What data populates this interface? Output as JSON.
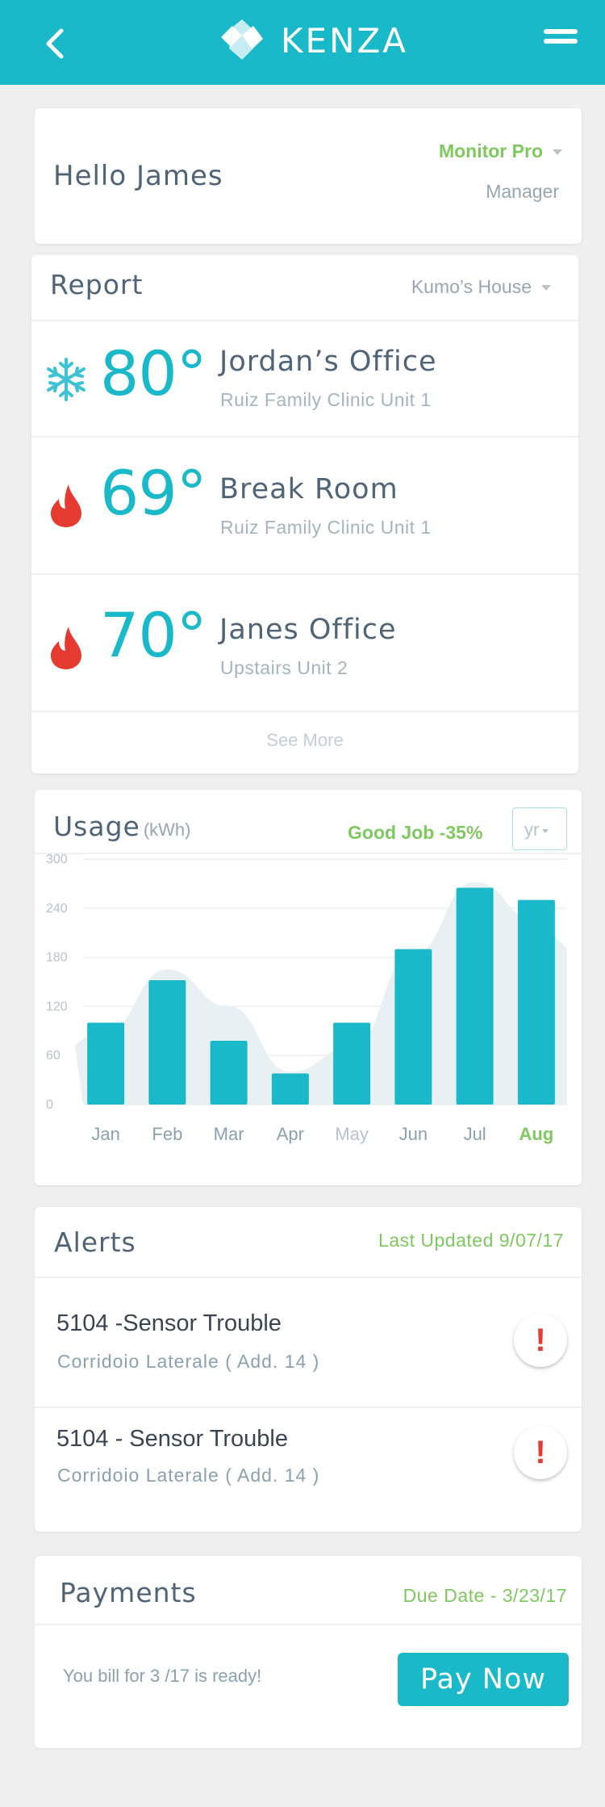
{
  "app": {
    "brand": "KENZA",
    "colors": {
      "primary": "#19b9c9",
      "accent_green": "#7ec85f",
      "alert_red": "#e53a30",
      "text_dark": "#4f6477"
    }
  },
  "header": {
    "back_icon": "chevron-left-icon",
    "menu_icon": "hamburger-menu-icon",
    "logo_icon": "kenza-logo-icon"
  },
  "greeting": {
    "text": "Hello James",
    "plan": "Monitor Pro",
    "role": "Manager"
  },
  "report": {
    "title": "Report",
    "location": "Kumo’s House",
    "zones": [
      {
        "temp": "80°",
        "mode": "cool",
        "icon": "snowflake-icon",
        "name": "Jordan’s Office",
        "unit": "Ruiz Family Clinic Unit 1"
      },
      {
        "temp": "69°",
        "mode": "heat",
        "icon": "flame-drop-icon",
        "name": "Break Room",
        "unit": "Ruiz Family Clinic Unit 1"
      },
      {
        "temp": "70°",
        "mode": "heat",
        "icon": "flame-drop-icon",
        "name": "Janes Office",
        "unit": "Upstairs Unit 2"
      }
    ],
    "see_more": "See More"
  },
  "usage": {
    "title": "Usage",
    "unit": "(kWh)",
    "status": "Good Job -35%",
    "period": "yr"
  },
  "chart_data": {
    "type": "bar",
    "categories": [
      "Jan",
      "Feb",
      "Mar",
      "Apr",
      "May",
      "Jun",
      "Jul",
      "Aug"
    ],
    "values": [
      100,
      152,
      78,
      38,
      100,
      190,
      265,
      250
    ],
    "trend_area": [
      90,
      165,
      120,
      40,
      70,
      185,
      272,
      225
    ],
    "ylim": [
      0,
      300
    ],
    "yticks": [
      "0",
      "60",
      "120",
      "180",
      "240",
      "300"
    ],
    "highlight_category": "Aug",
    "grid": true,
    "xlabel": "",
    "ylabel": ""
  },
  "alerts": {
    "title": "Alerts",
    "last_updated": "Last Updated 9/07/17",
    "items": [
      {
        "title": "5104 -Sensor Trouble",
        "location": "Corridoio Laterale ( Add. 14 )",
        "badge": "!"
      },
      {
        "title": "5104 - Sensor Trouble",
        "location": "Corridoio Laterale ( Add. 14 )",
        "badge": "!"
      }
    ]
  },
  "payments": {
    "title": "Payments",
    "due_date": "Due Date - 3/23/17",
    "message": "You bill for 3 /17 is ready!",
    "button": "Pay Now"
  }
}
